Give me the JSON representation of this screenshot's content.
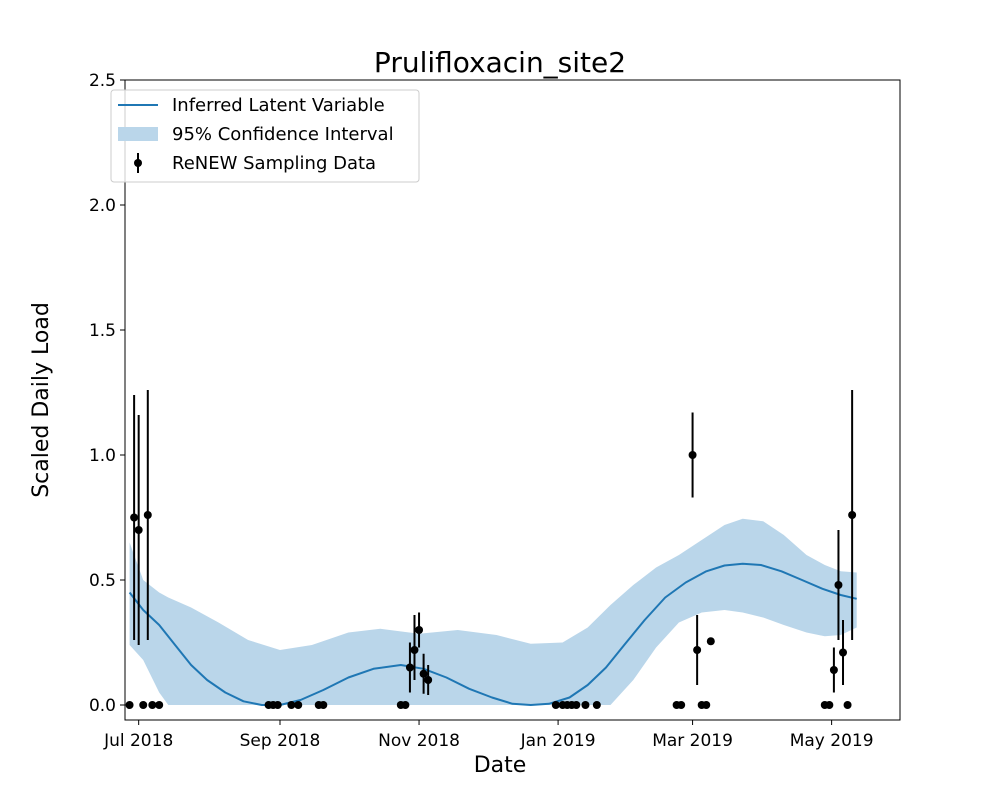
{
  "chart_data": {
    "type": "line",
    "title": "Prulifloxacin_site2",
    "xlabel": "Date",
    "ylabel": "Scaled Daily Load",
    "xlim": [
      "2018-06-25",
      "2019-05-31"
    ],
    "ylim": [
      -0.06,
      2.5
    ],
    "x_ticks": [
      {
        "date": "2018-07-01",
        "label": "Jul 2018"
      },
      {
        "date": "2018-09-01",
        "label": "Sep 2018"
      },
      {
        "date": "2018-11-01",
        "label": "Nov 2018"
      },
      {
        "date": "2019-01-01",
        "label": "Jan 2019"
      },
      {
        "date": "2019-03-01",
        "label": "Mar 2019"
      },
      {
        "date": "2019-05-01",
        "label": "May 2019"
      }
    ],
    "y_ticks": [
      {
        "value": 0.0,
        "label": "0.0"
      },
      {
        "value": 0.5,
        "label": "0.5"
      },
      {
        "value": 1.0,
        "label": "1.0"
      },
      {
        "value": 1.5,
        "label": "1.5"
      },
      {
        "value": 2.0,
        "label": "2.0"
      },
      {
        "value": 2.5,
        "label": "2.5"
      }
    ],
    "grid": false,
    "legend": {
      "placement": "top-left",
      "entries": [
        {
          "label": "Inferred Latent Variable",
          "kind": "line"
        },
        {
          "label": "95% Confidence Interval",
          "kind": "band"
        },
        {
          "label": "ReNEW Sampling Data",
          "kind": "errorbar"
        }
      ]
    },
    "colors": {
      "line": "#1f77b4",
      "band": "#bad6ea",
      "points": "#000000"
    },
    "series": [
      {
        "name": "Inferred Latent Variable",
        "kind": "line",
        "points": [
          {
            "date": "2018-06-27",
            "y": 0.45
          },
          {
            "date": "2018-07-03",
            "y": 0.38
          },
          {
            "date": "2018-07-10",
            "y": 0.32
          },
          {
            "date": "2018-07-17",
            "y": 0.24
          },
          {
            "date": "2018-07-24",
            "y": 0.16
          },
          {
            "date": "2018-07-31",
            "y": 0.1
          },
          {
            "date": "2018-08-08",
            "y": 0.05
          },
          {
            "date": "2018-08-16",
            "y": 0.015
          },
          {
            "date": "2018-08-24",
            "y": 0.0
          },
          {
            "date": "2018-09-01",
            "y": 0.0
          },
          {
            "date": "2018-09-10",
            "y": 0.02
          },
          {
            "date": "2018-09-20",
            "y": 0.06
          },
          {
            "date": "2018-10-01",
            "y": 0.11
          },
          {
            "date": "2018-10-12",
            "y": 0.145
          },
          {
            "date": "2018-10-24",
            "y": 0.16
          },
          {
            "date": "2018-11-03",
            "y": 0.145
          },
          {
            "date": "2018-11-13",
            "y": 0.11
          },
          {
            "date": "2018-11-23",
            "y": 0.065
          },
          {
            "date": "2018-12-03",
            "y": 0.03
          },
          {
            "date": "2018-12-12",
            "y": 0.005
          },
          {
            "date": "2018-12-20",
            "y": 0.0
          },
          {
            "date": "2018-12-28",
            "y": 0.005
          },
          {
            "date": "2019-01-06",
            "y": 0.03
          },
          {
            "date": "2019-01-14",
            "y": 0.08
          },
          {
            "date": "2019-01-22",
            "y": 0.15
          },
          {
            "date": "2019-01-30",
            "y": 0.24
          },
          {
            "date": "2019-02-08",
            "y": 0.34
          },
          {
            "date": "2019-02-17",
            "y": 0.43
          },
          {
            "date": "2019-02-26",
            "y": 0.49
          },
          {
            "date": "2019-03-07",
            "y": 0.535
          },
          {
            "date": "2019-03-15",
            "y": 0.558
          },
          {
            "date": "2019-03-23",
            "y": 0.565
          },
          {
            "date": "2019-03-31",
            "y": 0.56
          },
          {
            "date": "2019-04-09",
            "y": 0.535
          },
          {
            "date": "2019-04-18",
            "y": 0.5
          },
          {
            "date": "2019-04-27",
            "y": 0.465
          },
          {
            "date": "2019-05-05",
            "y": 0.44
          },
          {
            "date": "2019-05-12",
            "y": 0.425
          }
        ]
      },
      {
        "name": "95% Confidence Interval",
        "kind": "band",
        "points": [
          {
            "date": "2018-06-27",
            "lower": 0.24,
            "upper": 0.65
          },
          {
            "date": "2018-07-03",
            "lower": 0.18,
            "upper": 0.5
          },
          {
            "date": "2018-07-10",
            "lower": 0.05,
            "upper": 0.45
          },
          {
            "date": "2018-07-14",
            "lower": 0.0,
            "upper": 0.43
          },
          {
            "date": "2018-07-24",
            "lower": 0.0,
            "upper": 0.39
          },
          {
            "date": "2018-08-05",
            "lower": 0.0,
            "upper": 0.33
          },
          {
            "date": "2018-08-18",
            "lower": 0.0,
            "upper": 0.26
          },
          {
            "date": "2018-09-01",
            "lower": 0.0,
            "upper": 0.22
          },
          {
            "date": "2018-09-15",
            "lower": 0.0,
            "upper": 0.24
          },
          {
            "date": "2018-10-01",
            "lower": 0.0,
            "upper": 0.29
          },
          {
            "date": "2018-10-15",
            "lower": 0.0,
            "upper": 0.305
          },
          {
            "date": "2018-11-01",
            "lower": 0.0,
            "upper": 0.285
          },
          {
            "date": "2018-11-18",
            "lower": 0.0,
            "upper": 0.3
          },
          {
            "date": "2018-12-05",
            "lower": 0.0,
            "upper": 0.28
          },
          {
            "date": "2018-12-20",
            "lower": 0.0,
            "upper": 0.245
          },
          {
            "date": "2019-01-03",
            "lower": 0.0,
            "upper": 0.25
          },
          {
            "date": "2019-01-14",
            "lower": 0.0,
            "upper": 0.31
          },
          {
            "date": "2019-01-24",
            "lower": 0.0,
            "upper": 0.4
          },
          {
            "date": "2019-02-03",
            "lower": 0.1,
            "upper": 0.48
          },
          {
            "date": "2019-02-13",
            "lower": 0.23,
            "upper": 0.55
          },
          {
            "date": "2019-02-23",
            "lower": 0.33,
            "upper": 0.6
          },
          {
            "date": "2019-03-05",
            "lower": 0.37,
            "upper": 0.66
          },
          {
            "date": "2019-03-15",
            "lower": 0.38,
            "upper": 0.72
          },
          {
            "date": "2019-03-23",
            "lower": 0.37,
            "upper": 0.745
          },
          {
            "date": "2019-04-01",
            "lower": 0.35,
            "upper": 0.735
          },
          {
            "date": "2019-04-10",
            "lower": 0.32,
            "upper": 0.68
          },
          {
            "date": "2019-04-20",
            "lower": 0.29,
            "upper": 0.6
          },
          {
            "date": "2019-04-28",
            "lower": 0.275,
            "upper": 0.56
          },
          {
            "date": "2019-05-05",
            "lower": 0.28,
            "upper": 0.535
          },
          {
            "date": "2019-05-12",
            "lower": 0.31,
            "upper": 0.53
          }
        ]
      },
      {
        "name": "ReNEW Sampling Data",
        "kind": "errorbar",
        "points": [
          {
            "date": "2018-06-27",
            "y": 0.0
          },
          {
            "date": "2018-06-29",
            "y": 0.75,
            "err_low": 0.49,
            "err_high": 0.49
          },
          {
            "date": "2018-07-01",
            "y": 0.7,
            "err_low": 0.46,
            "err_high": 0.46
          },
          {
            "date": "2018-07-03",
            "y": 0.0
          },
          {
            "date": "2018-07-05",
            "y": 0.76,
            "err_low": 0.5,
            "err_high": 0.5
          },
          {
            "date": "2018-07-07",
            "y": 0.0
          },
          {
            "date": "2018-07-10",
            "y": 0.0
          },
          {
            "date": "2018-08-27",
            "y": 0.0
          },
          {
            "date": "2018-08-29",
            "y": 0.0
          },
          {
            "date": "2018-08-31",
            "y": 0.0
          },
          {
            "date": "2018-09-06",
            "y": 0.0
          },
          {
            "date": "2018-09-09",
            "y": 0.0
          },
          {
            "date": "2018-09-18",
            "y": 0.0
          },
          {
            "date": "2018-09-20",
            "y": 0.0
          },
          {
            "date": "2018-10-24",
            "y": 0.0
          },
          {
            "date": "2018-10-26",
            "y": 0.0
          },
          {
            "date": "2018-10-28",
            "y": 0.15,
            "err_low": 0.1,
            "err_high": 0.1
          },
          {
            "date": "2018-10-30",
            "y": 0.22,
            "err_low": 0.12,
            "err_high": 0.14
          },
          {
            "date": "2018-11-01",
            "y": 0.3,
            "err_low": 0.07,
            "err_high": 0.07
          },
          {
            "date": "2018-11-03",
            "y": 0.125,
            "err_low": 0.08,
            "err_high": 0.08
          },
          {
            "date": "2018-11-05",
            "y": 0.1,
            "err_low": 0.06,
            "err_high": 0.06
          },
          {
            "date": "2018-12-31",
            "y": 0.0
          },
          {
            "date": "2019-01-03",
            "y": 0.0
          },
          {
            "date": "2019-01-05",
            "y": 0.0
          },
          {
            "date": "2019-01-07",
            "y": 0.0
          },
          {
            "date": "2019-01-09",
            "y": 0.0
          },
          {
            "date": "2019-01-13",
            "y": 0.0
          },
          {
            "date": "2019-01-18",
            "y": 0.0
          },
          {
            "date": "2019-02-22",
            "y": 0.0
          },
          {
            "date": "2019-02-24",
            "y": 0.0
          },
          {
            "date": "2019-03-01",
            "y": 1.0,
            "err_low": 0.17,
            "err_high": 0.17
          },
          {
            "date": "2019-03-03",
            "y": 0.22,
            "err_low": 0.14,
            "err_high": 0.14
          },
          {
            "date": "2019-03-05",
            "y": 0.0
          },
          {
            "date": "2019-03-07",
            "y": 0.0
          },
          {
            "date": "2019-03-09",
            "y": 0.255
          },
          {
            "date": "2019-04-28",
            "y": 0.0
          },
          {
            "date": "2019-04-30",
            "y": 0.0
          },
          {
            "date": "2019-05-02",
            "y": 0.14,
            "err_low": 0.09,
            "err_high": 0.09
          },
          {
            "date": "2019-05-04",
            "y": 0.48,
            "err_low": 0.22,
            "err_high": 0.22
          },
          {
            "date": "2019-05-06",
            "y": 0.21,
            "err_low": 0.13,
            "err_high": 0.13
          },
          {
            "date": "2019-05-08",
            "y": 0.0
          },
          {
            "date": "2019-05-10",
            "y": 0.76,
            "err_low": 0.5,
            "err_high": 0.5
          }
        ]
      }
    ]
  }
}
